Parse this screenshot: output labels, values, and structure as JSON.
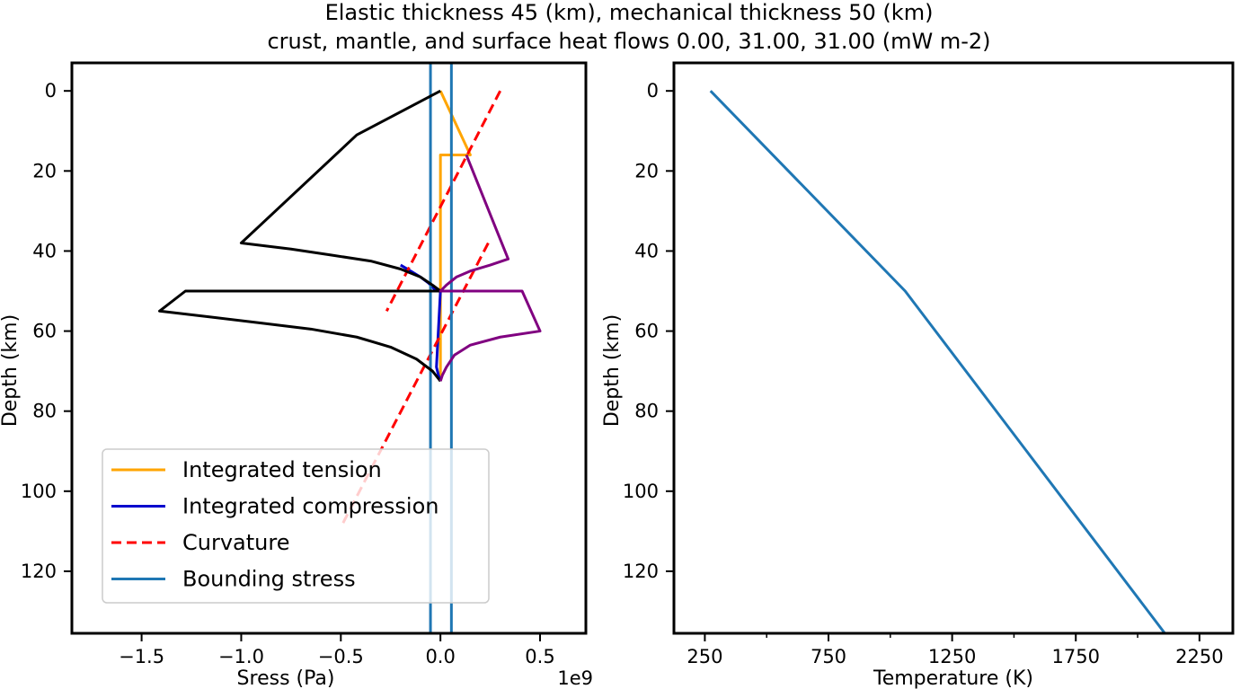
{
  "figure": {
    "title_line1": "Elastic thickness 45 (km), mechanical thickness 50 (km)",
    "title_line2": "crust, mantle, and surface heat flows 0.00, 31.00, 31.00 (mW m-2)"
  },
  "chart_data": [
    {
      "type": "line",
      "xlabel": "Sress (Pa)",
      "ylabel": "Depth (km)",
      "x_offset_label": "1e9",
      "xlim": [
        -1.85,
        0.73
      ],
      "ylim": [
        135.5,
        -7
      ],
      "y_inverted": true,
      "xticks": [
        -1.5,
        -1.0,
        -0.5,
        0.0,
        0.5
      ],
      "xtick_labels": [
        "−1.5",
        "−1.0",
        "−0.5",
        "0.0",
        "0.5"
      ],
      "yticks": [
        0,
        20,
        40,
        60,
        80,
        100,
        120
      ],
      "ytick_labels": [
        "0",
        "20",
        "40",
        "60",
        "80",
        "100",
        "120"
      ],
      "grid": false,
      "legend_position": "lower-left",
      "series": [
        {
          "name": "Integrated tension",
          "color": "#ffa500",
          "style": "solid",
          "in_legend": true,
          "points": [
            [
              0,
              0
            ],
            [
              0.15,
              16
            ],
            [
              0,
              16
            ],
            [
              0,
              50
            ],
            [
              0.12,
              50
            ],
            [
              0,
              50
            ],
            [
              0,
              72.5
            ]
          ]
        },
        {
          "name": "Integrated compression",
          "color": "#0000cd",
          "style": "solid",
          "in_legend": true,
          "points": [
            [
              -0.2,
              43.5
            ],
            [
              -0.15,
              45
            ],
            [
              -0.1,
              46.5
            ],
            [
              -0.06,
              48
            ],
            [
              -0.03,
              49.5
            ],
            [
              0,
              50
            ],
            [
              -0.02,
              69
            ],
            [
              -0.01,
              71
            ],
            [
              0,
              72.5
            ]
          ]
        },
        {
          "name": "Curvature",
          "color": "#ff0000",
          "style": "dashed",
          "in_legend": true,
          "segments": [
            [
              [
                0.3,
                0
              ],
              [
                -0.27,
                55
              ]
            ],
            [
              [
                0.24,
                38
              ],
              [
                -0.5,
                109
              ]
            ]
          ]
        },
        {
          "name": "Bounding stress",
          "color": "#1f77b4",
          "style": "solid",
          "in_legend": true,
          "segments": [
            [
              [
                -0.05,
                -7
              ],
              [
                -0.05,
                135.5
              ]
            ],
            [
              [
                0.055,
                -7
              ],
              [
                0.055,
                135.5
              ]
            ]
          ]
        },
        {
          "name": "",
          "color": "#000000",
          "style": "solid",
          "in_legend": false,
          "points": [
            [
              0,
              0
            ],
            [
              -0.42,
              11
            ],
            [
              -1.0,
              38
            ],
            [
              -0.75,
              39.5
            ],
            [
              -0.55,
              41
            ],
            [
              -0.35,
              42.5
            ],
            [
              -0.2,
              44.5
            ],
            [
              -0.1,
              46.5
            ],
            [
              -0.04,
              48.5
            ],
            [
              0,
              50
            ],
            [
              -1.28,
              50
            ],
            [
              -1.41,
              55
            ],
            [
              -1.15,
              56.5
            ],
            [
              -0.9,
              58
            ],
            [
              -0.65,
              59.5
            ],
            [
              -0.42,
              61.5
            ],
            [
              -0.25,
              64
            ],
            [
              -0.12,
              67
            ],
            [
              -0.04,
              70
            ],
            [
              0,
              72.5
            ]
          ]
        },
        {
          "name": "",
          "color": "#800080",
          "style": "solid",
          "in_legend": false,
          "points": [
            [
              0.13,
              16
            ],
            [
              0.34,
              42
            ],
            [
              0.25,
              43.5
            ],
            [
              0.15,
              45
            ],
            [
              0.08,
              46.5
            ],
            [
              0.03,
              48.5
            ],
            [
              0,
              50
            ],
            [
              0.41,
              50
            ],
            [
              0.5,
              60
            ],
            [
              0.3,
              61.5
            ],
            [
              0.15,
              63.5
            ],
            [
              0.07,
              66
            ],
            [
              0.03,
              69
            ],
            [
              0.01,
              71
            ],
            [
              0,
              72.5
            ]
          ]
        }
      ]
    },
    {
      "type": "line",
      "xlabel": "Temperature (K)",
      "ylabel": "Depth (km)",
      "xlim": [
        125,
        2385
      ],
      "ylim": [
        135.5,
        -7
      ],
      "y_inverted": true,
      "xticks": [
        250,
        750,
        1250,
        1750,
        2250
      ],
      "xtick_labels": [
        "250",
        "750",
        "1250",
        "1750",
        "2250"
      ],
      "minor_xticks": [
        500,
        1000,
        1500,
        2000
      ],
      "yticks": [
        0,
        20,
        40,
        60,
        80,
        100,
        120
      ],
      "ytick_labels": [
        "0",
        "20",
        "40",
        "60",
        "80",
        "100",
        "120"
      ],
      "grid": false,
      "series": [
        {
          "name": "",
          "color": "#1f77b4",
          "style": "solid",
          "points": [
            [
              273,
              0
            ],
            [
              1060,
              50
            ],
            [
              2110,
              135.5
            ]
          ]
        }
      ]
    }
  ]
}
